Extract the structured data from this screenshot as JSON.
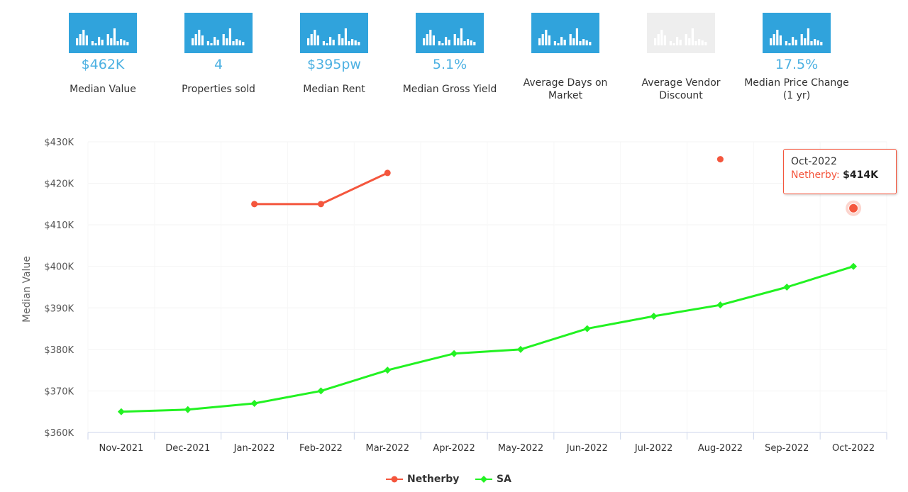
{
  "stats": [
    {
      "value": "$462K",
      "label": "Median Value",
      "icon": "bar-chart-icon",
      "disabled": false
    },
    {
      "value": "4",
      "label": "Properties sold",
      "icon": "bar-chart-icon",
      "disabled": false
    },
    {
      "value": "$395pw",
      "label": "Median Rent",
      "icon": "bar-chart-icon",
      "disabled": false
    },
    {
      "value": "5.1%",
      "label": "Median Gross Yield",
      "icon": "bar-chart-icon",
      "disabled": false
    },
    {
      "value": "",
      "label": "Average Days on Market",
      "icon": "bar-chart-icon",
      "disabled": false
    },
    {
      "value": "",
      "label": "Average Vendor Discount",
      "icon": "bar-chart-icon",
      "disabled": true
    },
    {
      "value": "17.5%",
      "label": "Median Price Change (1 yr)",
      "icon": "bar-chart-icon",
      "disabled": false
    }
  ],
  "colors": {
    "accent": "#30a3dc",
    "stat_value": "#4db1e2",
    "netherby": "#f4563d",
    "sa": "#22f222"
  },
  "chart_data": {
    "type": "line",
    "ylabel": "Median Value",
    "xlabel": "",
    "categories": [
      "Nov-2021",
      "Dec-2021",
      "Jan-2022",
      "Feb-2022",
      "Mar-2022",
      "Apr-2022",
      "May-2022",
      "Jun-2022",
      "Jul-2022",
      "Aug-2022",
      "Sep-2022",
      "Oct-2022"
    ],
    "ylim": [
      360000,
      430000
    ],
    "yticks": [
      360000,
      370000,
      380000,
      390000,
      400000,
      410000,
      420000,
      430000
    ],
    "ytick_labels": [
      "$360K",
      "$370K",
      "$380K",
      "$390K",
      "$400K",
      "$410K",
      "$420K",
      "$430K"
    ],
    "grid": true,
    "legend_position": "bottom-center",
    "series": [
      {
        "name": "Netherby",
        "marker": "circle",
        "values": [
          null,
          null,
          415000,
          415000,
          422500,
          null,
          null,
          null,
          null,
          425800,
          null,
          414000
        ]
      },
      {
        "name": "SA",
        "marker": "diamond",
        "values": [
          365000,
          365500,
          367000,
          370000,
          375000,
          379000,
          380000,
          385000,
          388000,
          390700,
          395000,
          400000
        ]
      }
    ],
    "tooltip": {
      "category": "Oct-2022",
      "series": "Netherby",
      "value_label": "$414K"
    }
  }
}
